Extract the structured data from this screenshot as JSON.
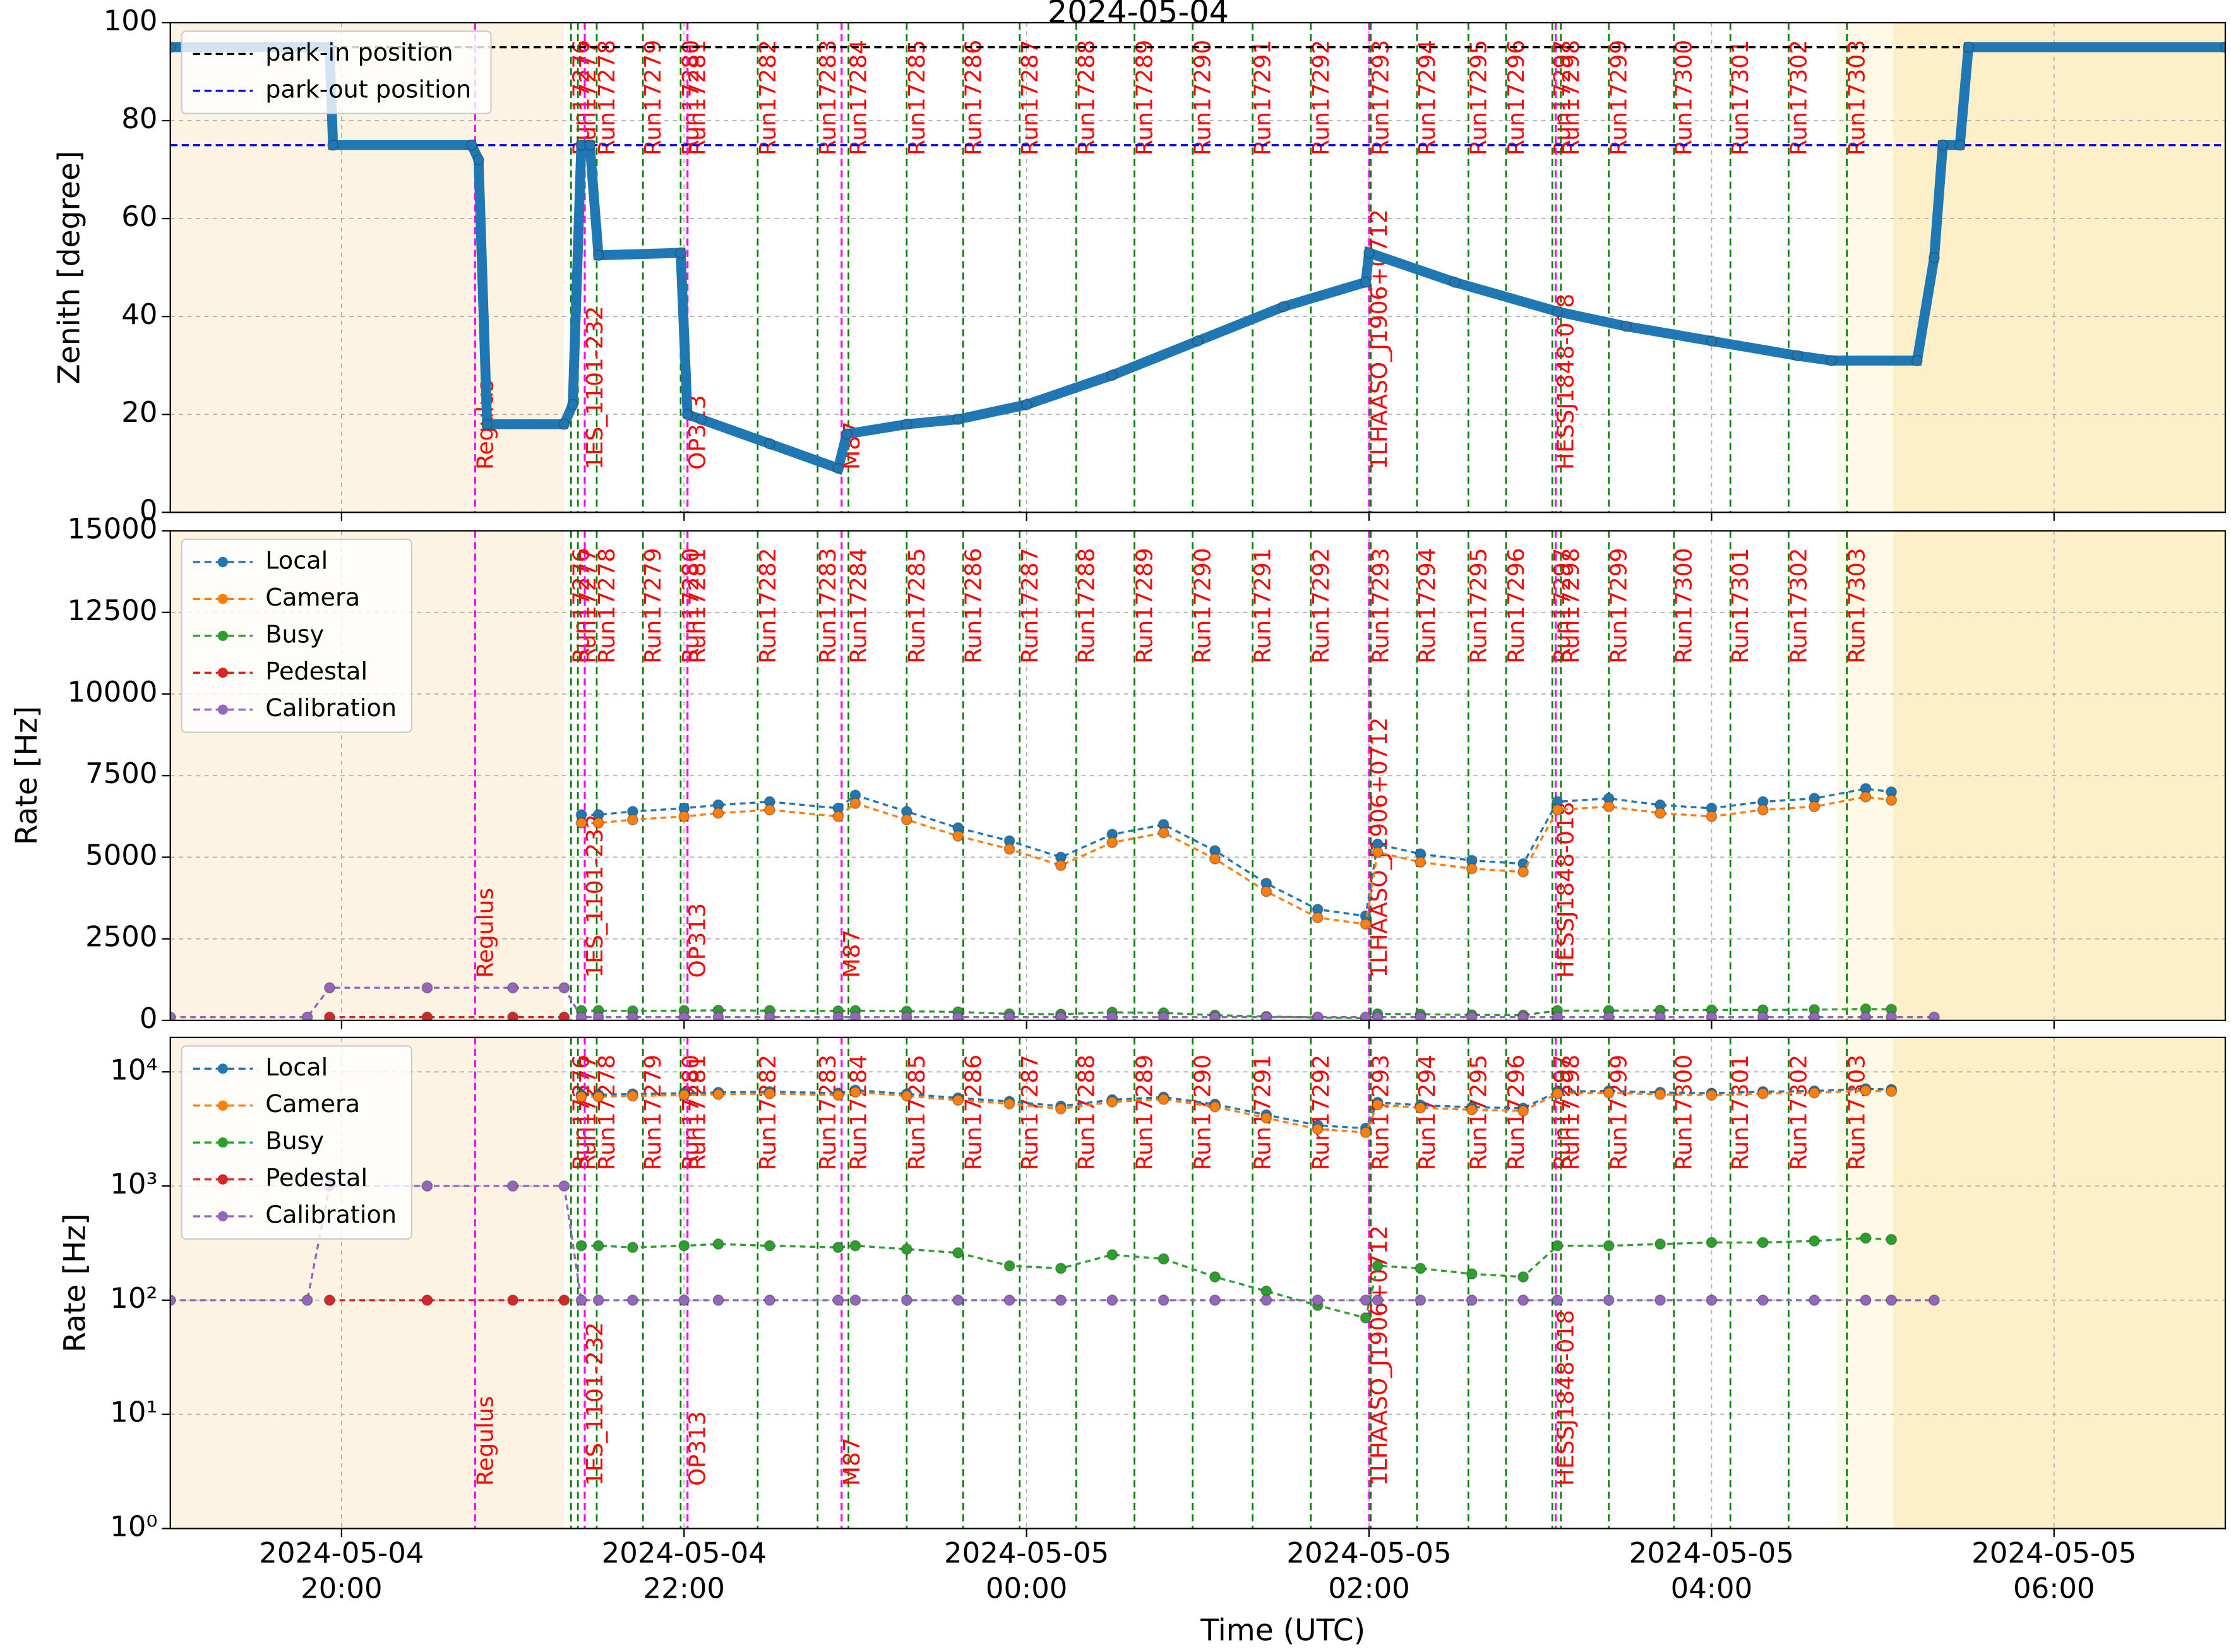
{
  "chart_data": [
    {
      "type": "line",
      "title": "2024-05-04",
      "ylabel": "Zenith [degree]",
      "xlim": [
        19,
        31
      ],
      "ylim": [
        0,
        100
      ],
      "yticks": [
        0,
        20,
        40,
        60,
        80,
        100
      ],
      "grid": true,
      "legend": "upper left",
      "hlines": [
        {
          "name": "park-in position",
          "value": 95,
          "color": "#000000"
        },
        {
          "name": "park-out position",
          "value": 75,
          "color": "#0000ff"
        }
      ],
      "shading": [
        {
          "x": [
            19,
            21.3
          ],
          "color": "#fdf3e2"
        },
        {
          "x": [
            28.73,
            29.06
          ],
          "color": "#fffbe6"
        },
        {
          "x": [
            29.06,
            31
          ],
          "color": "#fdf0c8"
        }
      ],
      "x": [
        19,
        19.93,
        19.95,
        20.76,
        20.8,
        20.85,
        21.3,
        21.35,
        21.4,
        21.45,
        21.5,
        21.98,
        22.02,
        22.1,
        22.5,
        22.9,
        22.95,
        23.3,
        23.6,
        24,
        24.5,
        25,
        25.5,
        25.98,
        26,
        26.5,
        27.1,
        27.5,
        28,
        28.5,
        28.7,
        29.2,
        29.3,
        29.35,
        29.45,
        29.5,
        31
      ],
      "series": [
        {
          "color": "#1f77b4",
          "values": [
            95,
            95,
            75,
            75,
            72,
            18,
            18,
            22,
            75,
            75,
            52.5,
            53,
            20,
            19,
            14,
            9,
            16,
            18,
            19,
            22,
            28,
            35,
            42,
            47,
            53,
            47,
            41,
            38,
            35,
            32,
            31,
            31,
            52,
            75,
            75,
            95,
            95
          ]
        }
      ],
      "run_color": "#008000",
      "source_color": "#ff00ff",
      "runs": [
        {
          "label": "Run17276",
          "x": 21.34
        },
        {
          "label": "Run17277",
          "x": 21.38
        },
        {
          "label": "Run17278",
          "x": 21.49
        },
        {
          "label": "Run17279",
          "x": 21.76
        },
        {
          "label": "Run17280",
          "x": 21.98
        },
        {
          "label": "Run17281",
          "x": 22.02
        },
        {
          "label": "Run17282",
          "x": 22.43
        },
        {
          "label": "Run17283",
          "x": 22.78
        },
        {
          "label": "Run17284",
          "x": 22.96
        },
        {
          "label": "Run17285",
          "x": 23.3
        },
        {
          "label": "Run17286",
          "x": 23.63
        },
        {
          "label": "Run17287",
          "x": 23.96
        },
        {
          "label": "Run17288",
          "x": 24.29
        },
        {
          "label": "Run17289",
          "x": 24.63
        },
        {
          "label": "Run17290",
          "x": 24.97
        },
        {
          "label": "Run17291",
          "x": 25.32
        },
        {
          "label": "Run17292",
          "x": 25.66
        },
        {
          "label": "Run17293",
          "x": 26.01
        },
        {
          "label": "Run17294",
          "x": 26.28
        },
        {
          "label": "Run17295",
          "x": 26.58
        },
        {
          "label": "Run17296",
          "x": 26.8
        },
        {
          "label": "Run17297",
          "x": 27.07
        },
        {
          "label": "Run17298",
          "x": 27.12
        },
        {
          "label": "Run17299",
          "x": 27.4
        },
        {
          "label": "Run17300",
          "x": 27.78
        },
        {
          "label": "Run17301",
          "x": 28.11
        },
        {
          "label": "Run17302",
          "x": 28.45
        },
        {
          "label": "Run17303",
          "x": 28.79
        }
      ],
      "sources": [
        {
          "label": "Regulus",
          "x": 20.78
        },
        {
          "label": "1ES_1101-232",
          "x": 21.42
        },
        {
          "label": "OP313",
          "x": 22.02
        },
        {
          "label": "M87",
          "x": 22.92
        },
        {
          "label": "1LHAASO_J1906+0712",
          "x": 26.0
        },
        {
          "label": "HESSJ1848-018",
          "x": 27.09
        }
      ]
    },
    {
      "type": "line",
      "ylabel": "Rate [Hz]",
      "xlim": [
        19,
        31
      ],
      "ylim": [
        0,
        15000
      ],
      "yticks": [
        0,
        2500,
        5000,
        7500,
        10000,
        12500,
        15000
      ],
      "grid": true,
      "legend": "upper left",
      "x": [
        19,
        19.8,
        19.93,
        20.5,
        21,
        21.3,
        21.4,
        21.5,
        21.7,
        22,
        22.2,
        22.5,
        22.9,
        23,
        23.3,
        23.6,
        23.9,
        24.2,
        24.5,
        24.8,
        25.1,
        25.4,
        25.7,
        25.98,
        26.05,
        26.3,
        26.6,
        26.9,
        27.1,
        27.4,
        27.7,
        28,
        28.3,
        28.6,
        28.9,
        29.05,
        29.3,
        29.7,
        30
      ],
      "series": [
        {
          "name": "Local",
          "color": "#1f77b4",
          "values": [
            null,
            null,
            null,
            null,
            null,
            null,
            6300,
            6300,
            6400,
            6500,
            6600,
            6700,
            6500,
            6900,
            6400,
            5900,
            5500,
            5000,
            5700,
            6000,
            5200,
            4200,
            3400,
            3200,
            5400,
            5100,
            4900,
            4800,
            6700,
            6800,
            6600,
            6500,
            6700,
            6800,
            7100,
            7000,
            null,
            null,
            null
          ]
        },
        {
          "name": "Camera",
          "color": "#ff7f0e",
          "values": [
            null,
            null,
            null,
            null,
            null,
            null,
            6050,
            6050,
            6150,
            6250,
            6350,
            6450,
            6250,
            6650,
            6150,
            5650,
            5250,
            4750,
            5450,
            5750,
            4950,
            3950,
            3150,
            2950,
            5150,
            4850,
            4650,
            4550,
            6450,
            6550,
            6350,
            6250,
            6450,
            6550,
            6850,
            6750,
            null,
            null,
            null
          ]
        },
        {
          "name": "Busy",
          "color": "#2ca02c",
          "values": [
            null,
            null,
            null,
            null,
            null,
            null,
            300,
            300,
            290,
            300,
            310,
            300,
            290,
            300,
            280,
            260,
            200,
            190,
            250,
            230,
            160,
            120,
            90,
            70,
            200,
            190,
            170,
            160,
            300,
            300,
            310,
            320,
            320,
            330,
            350,
            340,
            null,
            null,
            null
          ]
        },
        {
          "name": "Pedestal",
          "color": "#d62728",
          "values": [
            null,
            null,
            100,
            100,
            100,
            100,
            null,
            null,
            null,
            null,
            null,
            null,
            null,
            null,
            null,
            null,
            null,
            null,
            null,
            null,
            null,
            null,
            null,
            null,
            null,
            null,
            null,
            null,
            null,
            null,
            null,
            null,
            null,
            null,
            null,
            null,
            null,
            null,
            null
          ]
        },
        {
          "name": "Calibration",
          "color": "#9467bd",
          "values": [
            100,
            100,
            1000,
            1000,
            1000,
            1000,
            100,
            100,
            100,
            100,
            100,
            100,
            100,
            100,
            100,
            100,
            100,
            100,
            100,
            100,
            100,
            100,
            100,
            100,
            100,
            100,
            100,
            100,
            100,
            100,
            100,
            100,
            100,
            100,
            100,
            100,
            100,
            null,
            null
          ]
        }
      ]
    },
    {
      "type": "line",
      "yscale": "log",
      "ylabel": "Rate [Hz]",
      "xlabel": "Time (UTC)",
      "xlim": [
        19,
        31
      ],
      "ylim": [
        1,
        20000
      ],
      "yticks": [
        {
          "value": 1,
          "label": "10⁰"
        },
        {
          "value": 10,
          "label": "10¹"
        },
        {
          "value": 100,
          "label": "10²"
        },
        {
          "value": 1000,
          "label": "10³"
        },
        {
          "value": 10000,
          "label": "10⁴"
        }
      ],
      "xticks": [
        {
          "value": 20,
          "label": "2024-05-04\n20:00"
        },
        {
          "value": 22,
          "label": "2024-05-04\n22:00"
        },
        {
          "value": 24,
          "label": "2024-05-05\n00:00"
        },
        {
          "value": 26,
          "label": "2024-05-05\n02:00"
        },
        {
          "value": 28,
          "label": "2024-05-05\n04:00"
        },
        {
          "value": 30,
          "label": "2024-05-05\n06:00"
        }
      ],
      "grid": true,
      "legend": "upper left",
      "x": [
        19,
        19.8,
        19.93,
        20.5,
        21,
        21.3,
        21.4,
        21.5,
        21.7,
        22,
        22.2,
        22.5,
        22.9,
        23,
        23.3,
        23.6,
        23.9,
        24.2,
        24.5,
        24.8,
        25.1,
        25.4,
        25.7,
        25.98,
        26.05,
        26.3,
        26.6,
        26.9,
        27.1,
        27.4,
        27.7,
        28,
        28.3,
        28.6,
        28.9,
        29.05,
        29.3,
        29.7,
        30
      ],
      "series": [
        {
          "name": "Local",
          "color": "#1f77b4",
          "values": [
            null,
            null,
            null,
            null,
            null,
            null,
            6300,
            6300,
            6400,
            6500,
            6600,
            6700,
            6500,
            6900,
            6400,
            5900,
            5500,
            5000,
            5700,
            6000,
            5200,
            4200,
            3400,
            3200,
            5400,
            5100,
            4900,
            4800,
            6700,
            6800,
            6600,
            6500,
            6700,
            6800,
            7100,
            7000,
            null,
            null,
            null
          ]
        },
        {
          "name": "Camera",
          "color": "#ff7f0e",
          "values": [
            null,
            null,
            null,
            null,
            null,
            null,
            6050,
            6050,
            6150,
            6250,
            6350,
            6450,
            6250,
            6650,
            6150,
            5650,
            5250,
            4750,
            5450,
            5750,
            4950,
            3950,
            3150,
            2950,
            5150,
            4850,
            4650,
            4550,
            6450,
            6550,
            6350,
            6250,
            6450,
            6550,
            6850,
            6750,
            null,
            null,
            null
          ]
        },
        {
          "name": "Busy",
          "color": "#2ca02c",
          "values": [
            null,
            null,
            null,
            null,
            null,
            null,
            300,
            300,
            290,
            300,
            310,
            300,
            290,
            300,
            280,
            260,
            200,
            190,
            250,
            230,
            160,
            120,
            90,
            70,
            200,
            190,
            170,
            160,
            300,
            300,
            310,
            320,
            320,
            330,
            350,
            340,
            null,
            null,
            null
          ]
        },
        {
          "name": "Pedestal",
          "color": "#d62728",
          "values": [
            null,
            null,
            100,
            100,
            100,
            100,
            null,
            null,
            null,
            null,
            null,
            null,
            null,
            null,
            null,
            null,
            null,
            null,
            null,
            null,
            null,
            null,
            null,
            null,
            null,
            null,
            null,
            null,
            null,
            null,
            null,
            null,
            null,
            null,
            null,
            null,
            null,
            null,
            null
          ]
        },
        {
          "name": "Calibration",
          "color": "#9467bd",
          "values": [
            100,
            100,
            1000,
            1000,
            1000,
            1000,
            100,
            100,
            100,
            100,
            100,
            100,
            100,
            100,
            100,
            100,
            100,
            100,
            100,
            100,
            100,
            100,
            100,
            100,
            100,
            100,
            100,
            100,
            100,
            100,
            100,
            100,
            100,
            100,
            100,
            100,
            100,
            null,
            null
          ]
        }
      ]
    }
  ]
}
